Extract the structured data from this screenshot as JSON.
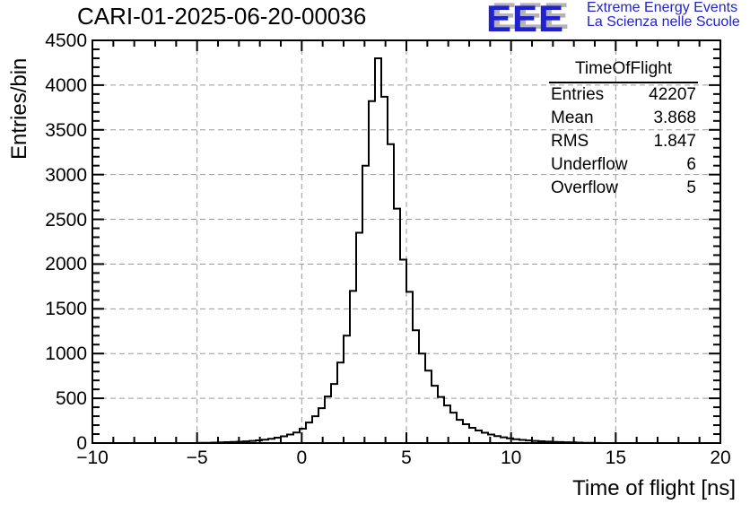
{
  "header": {
    "title": "CARI-01-2025-06-20-00036",
    "logo": {
      "text": "EEE",
      "line1": "Extreme Energy Events",
      "line2": "La Scienza nelle Scuole",
      "color": "#2222cc",
      "shadow_color": "#b3b3b3"
    }
  },
  "stats": {
    "title": "TimeOfFlight",
    "rows": [
      {
        "label": "Entries",
        "value": "42207"
      },
      {
        "label": "Mean",
        "value": "3.868"
      },
      {
        "label": "RMS",
        "value": "1.847"
      },
      {
        "label": "Underflow",
        "value": "6"
      },
      {
        "label": "Overflow",
        "value": "5"
      }
    ]
  },
  "chart_data": {
    "type": "bar",
    "subtype": "step-histogram",
    "title": "CARI-01-2025-06-20-00036",
    "xlabel": "Time of flight [ns]",
    "ylabel": "Entries/bin",
    "xlim": [
      -10,
      20
    ],
    "ylim": [
      0,
      4500
    ],
    "x_ticks": [
      -10,
      -5,
      0,
      5,
      10,
      15,
      20
    ],
    "x_tick_labels": [
      "−10",
      "−5",
      "0",
      "5",
      "10",
      "15",
      "20"
    ],
    "x_minor_step": 1,
    "y_ticks": [
      0,
      500,
      1000,
      1500,
      2000,
      2500,
      3000,
      3500,
      4000,
      4500
    ],
    "y_tick_labels": [
      "0",
      "500",
      "1000",
      "1500",
      "2000",
      "2500",
      "3000",
      "3500",
      "4000",
      "4500"
    ],
    "y_minor_step": 100,
    "grid": true,
    "legend": "none",
    "colors": {
      "line": "#000000",
      "grid": "#9a9a9a",
      "frame": "#000000"
    },
    "bins": {
      "start": -10,
      "width": 0.3,
      "values": [
        0,
        0,
        0,
        0,
        0,
        0,
        0,
        0,
        0,
        0,
        0,
        0,
        0,
        0,
        0,
        0,
        0,
        2,
        3,
        5,
        8,
        10,
        12,
        15,
        19,
        24,
        30,
        38,
        48,
        60,
        75,
        95,
        118,
        160,
        230,
        300,
        390,
        520,
        660,
        900,
        1200,
        1700,
        2350,
        3100,
        3820,
        4300,
        3870,
        3340,
        2620,
        2050,
        1690,
        1260,
        1000,
        810,
        640,
        515,
        420,
        340,
        260,
        210,
        170,
        140,
        115,
        95,
        78,
        64,
        52,
        43,
        35,
        29,
        24,
        20,
        16,
        13,
        11,
        9,
        7,
        5,
        3,
        2,
        1,
        0,
        0,
        0,
        0,
        0,
        0,
        0,
        0,
        0,
        0,
        0,
        0,
        0,
        0,
        0,
        0,
        0,
        0,
        0
      ]
    }
  }
}
